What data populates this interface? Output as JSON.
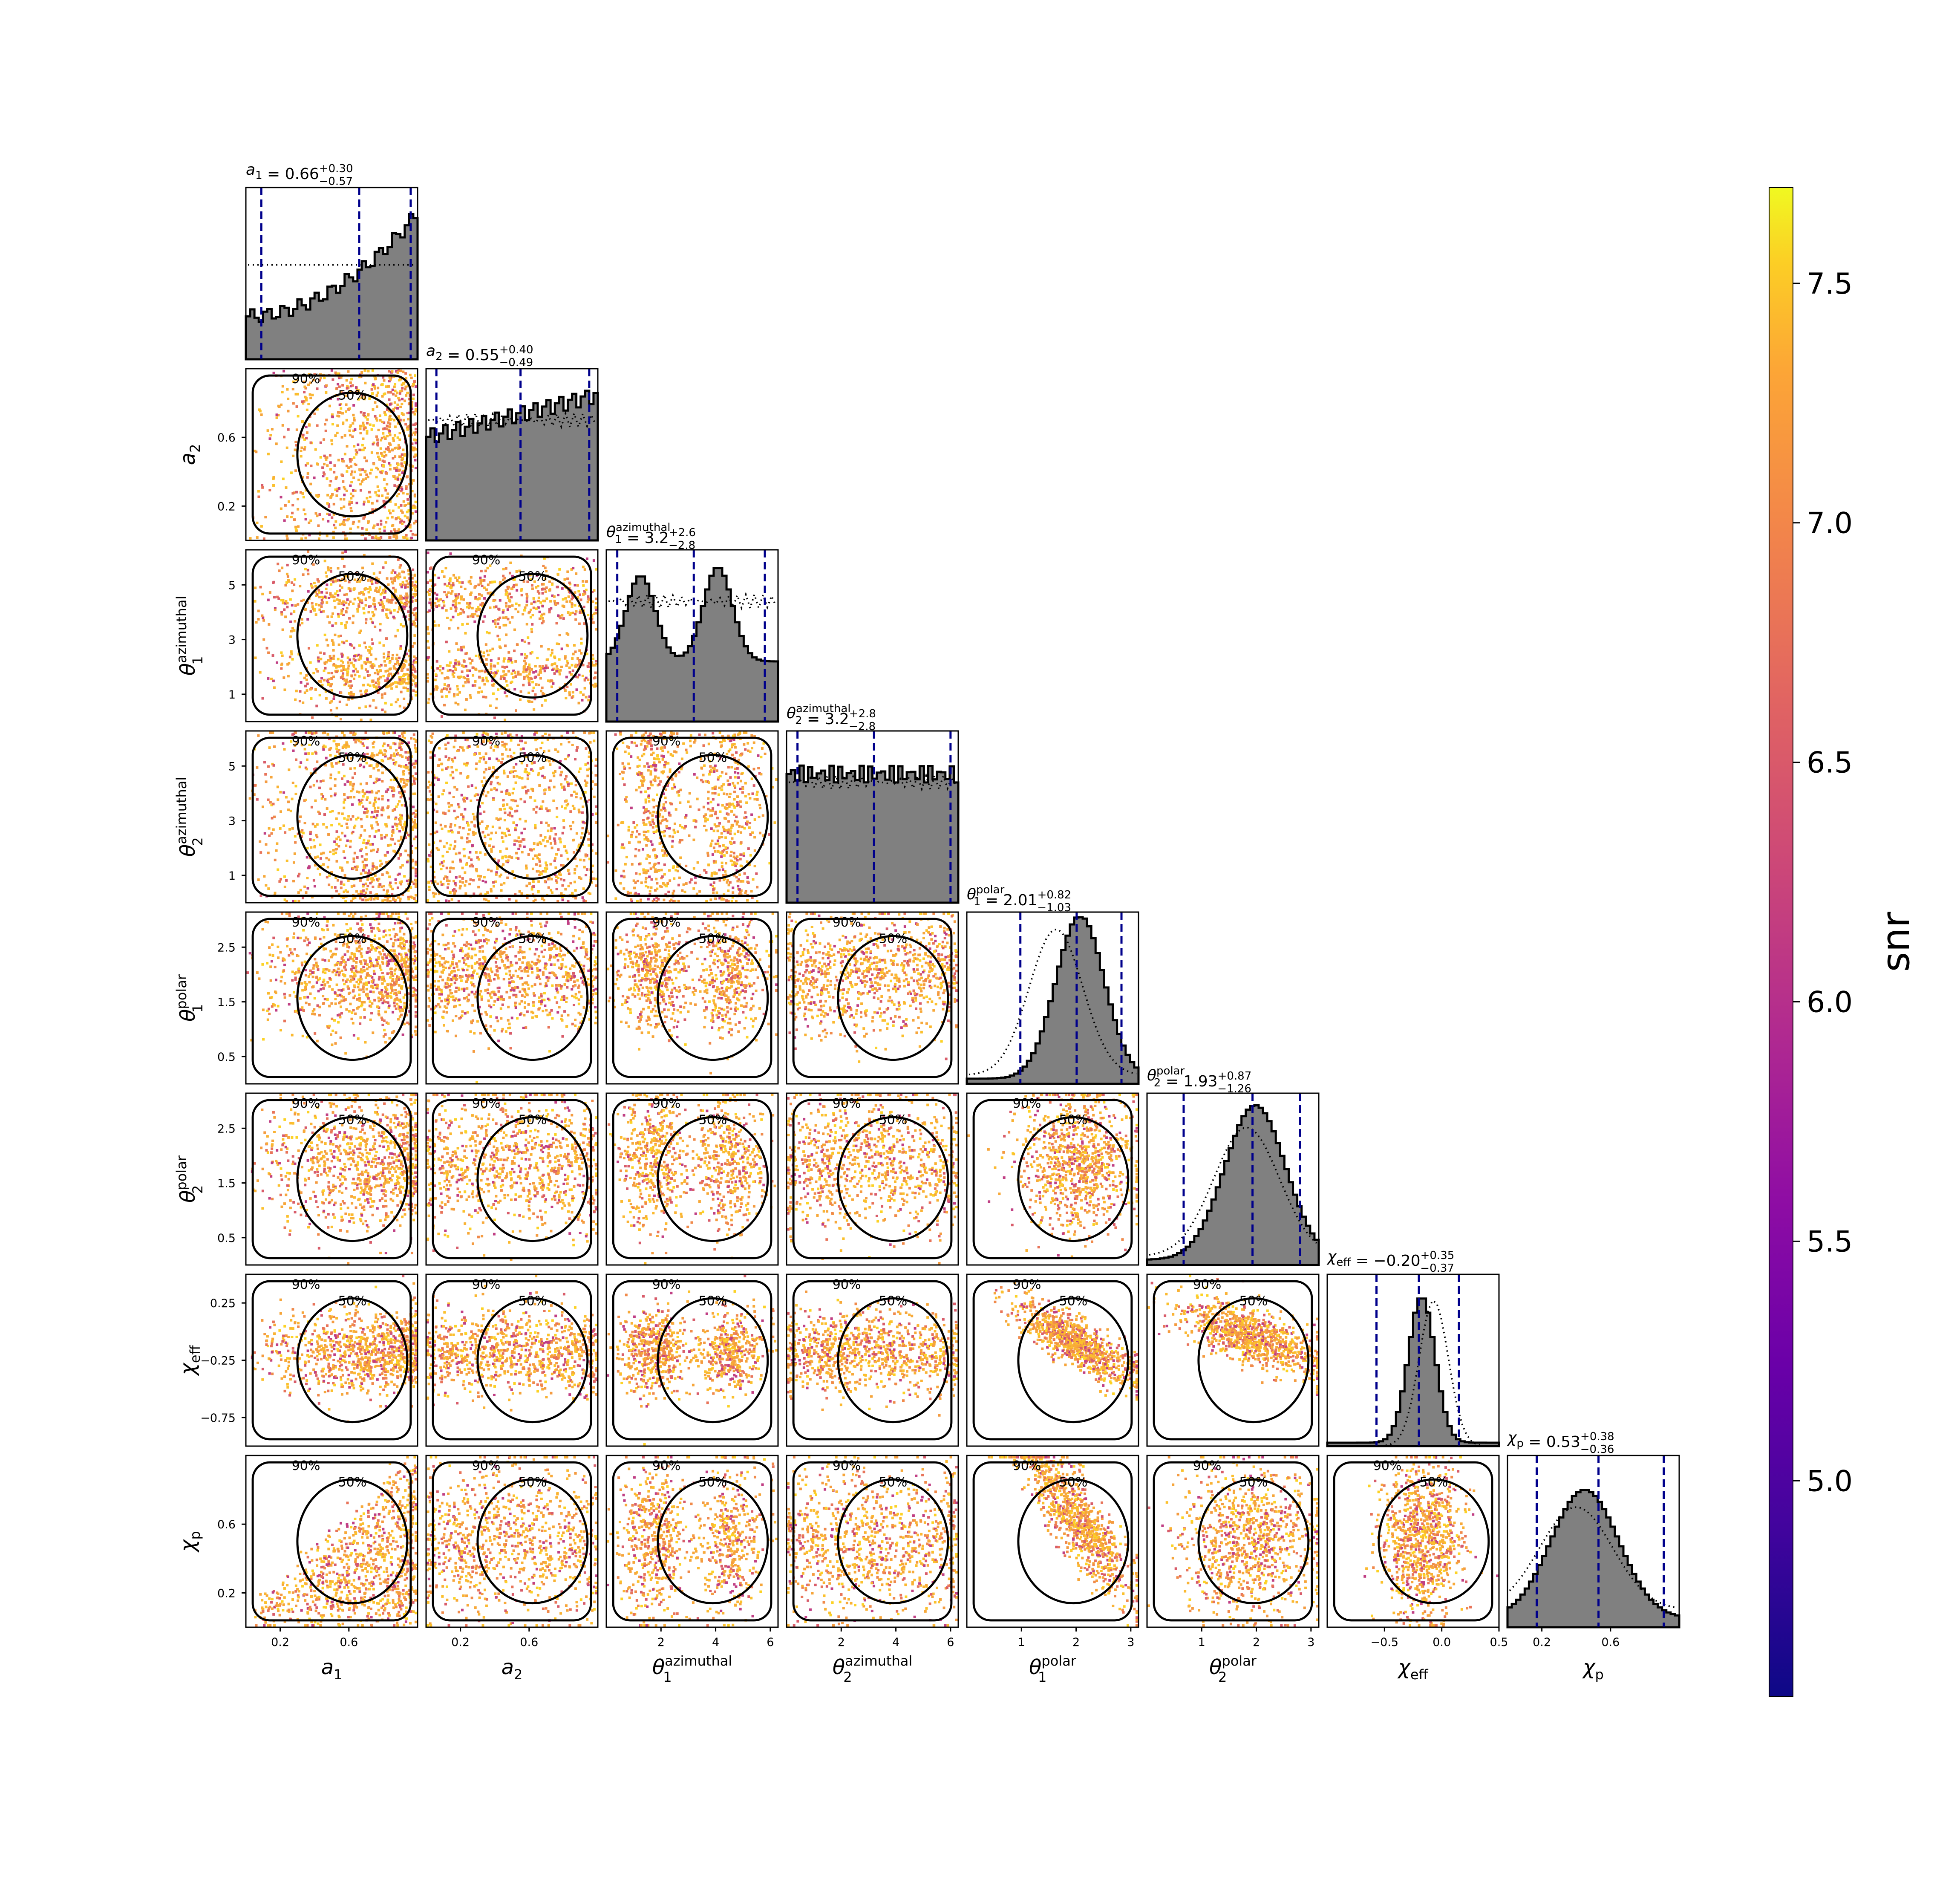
{
  "chart_data": {
    "type": "corner",
    "parameters": [
      {
        "key": "a1",
        "sym": "a",
        "sub": "1",
        "sup": "",
        "ticks": [
          "0.2",
          "0.6"
        ],
        "tick_values": [
          0.2,
          0.6
        ],
        "range": [
          0,
          1
        ],
        "title": {
          "value": "0.66",
          "plus": "+0.30",
          "minus": "−0.57"
        },
        "hist_tall_at_right": true
      },
      {
        "key": "a2",
        "sym": "a",
        "sub": "2",
        "sup": "",
        "ticks": [
          "0.2",
          "0.6"
        ],
        "tick_values": [
          0.2,
          0.6
        ],
        "range": [
          0,
          1
        ],
        "title": {
          "value": "0.55",
          "plus": "+0.40",
          "minus": "−0.49"
        }
      },
      {
        "key": "t1az",
        "sym": "θ",
        "sub": "1",
        "sup": "azimuthal",
        "ticks": [
          "1",
          "3",
          "5"
        ],
        "tick_values": [
          1,
          3,
          5
        ],
        "range": [
          0,
          6.283
        ],
        "title": {
          "value": "3.2",
          "plus": "+2.6",
          "minus": "−2.8"
        }
      },
      {
        "key": "t2az",
        "sym": "θ",
        "sub": "2",
        "sup": "azimuthal",
        "ticks": [
          "1",
          "3",
          "5"
        ],
        "tick_values": [
          1,
          3,
          5
        ],
        "range": [
          0,
          6.283
        ],
        "title": {
          "value": "3.2",
          "plus": "+2.8",
          "minus": "−2.8"
        }
      },
      {
        "key": "t1p",
        "sym": "θ",
        "sub": "1",
        "sup": "polar",
        "ticks": [
          "0.5",
          "1.5",
          "2.5"
        ],
        "tick_values": [
          0.5,
          1.5,
          2.5
        ],
        "range": [
          0,
          3.1416
        ],
        "title": {
          "value": "2.01",
          "plus": "+0.82",
          "minus": "−1.03"
        }
      },
      {
        "key": "t2p",
        "sym": "θ",
        "sub": "2",
        "sup": "polar",
        "ticks": [
          "0.5",
          "1.5",
          "2.5"
        ],
        "tick_values": [
          0.5,
          1.5,
          2.5
        ],
        "range": [
          0,
          3.1416
        ],
        "title": {
          "value": "1.93",
          "plus": "+0.87",
          "minus": "−1.26"
        }
      },
      {
        "key": "chieff",
        "sym": "χ",
        "sub": "eff",
        "sup": "",
        "ticks": [
          "−0.75",
          "−0.25",
          "0.25"
        ],
        "tick_values": [
          -0.75,
          -0.25,
          0.25
        ],
        "range": [
          -1,
          0.5
        ],
        "title": {
          "value": "−0.20",
          "plus": "+0.35",
          "minus": "−0.37"
        }
      },
      {
        "key": "chip",
        "sym": "χ",
        "sub": "p",
        "sup": "",
        "ticks": [
          "0.2",
          "0.6"
        ],
        "tick_values": [
          0.2,
          0.6
        ],
        "range": [
          0,
          1
        ],
        "title": {
          "value": "0.53",
          "plus": "+0.38",
          "minus": "−0.36"
        }
      }
    ],
    "bottom_axis_ticks": {
      "a1": {
        "labels": [
          "0.2",
          "0.6"
        ],
        "values": [
          0.2,
          0.6
        ]
      },
      "a2": {
        "labels": [
          "0.2",
          "0.6"
        ],
        "values": [
          0.2,
          0.6
        ]
      },
      "t1az": {
        "labels": [
          "2",
          "4",
          "6"
        ],
        "values": [
          2,
          4,
          6
        ]
      },
      "t2az": {
        "labels": [
          "2",
          "4",
          "6"
        ],
        "values": [
          2,
          4,
          6
        ]
      },
      "t1p": {
        "labels": [
          "1",
          "2",
          "3"
        ],
        "values": [
          1,
          2,
          3
        ]
      },
      "t2p": {
        "labels": [
          "1",
          "2",
          "3"
        ],
        "values": [
          1,
          2,
          3
        ]
      },
      "chieff": {
        "labels": [
          "−0.5",
          "0.0",
          "0.5"
        ],
        "values": [
          -0.5,
          0.0,
          0.5
        ]
      },
      "chip": {
        "labels": [
          "0.2",
          "0.6"
        ],
        "values": [
          0.2,
          0.6
        ]
      }
    },
    "contour_levels": [
      "50%",
      "90%"
    ],
    "colorbar": {
      "label": "snr",
      "range": [
        4.55,
        7.7
      ],
      "ticks": [
        "5.0",
        "5.5",
        "6.0",
        "6.5",
        "7.0",
        "7.5"
      ],
      "tick_values": [
        5.0,
        5.5,
        6.0,
        6.5,
        7.0,
        7.5
      ],
      "colormap": "plasma"
    },
    "colors": {
      "hist_fill": "#808080",
      "hist_edge": "#000000",
      "median_lines": "#00008b",
      "contours": "#000000",
      "scatter_main": "#f6a53a"
    }
  }
}
